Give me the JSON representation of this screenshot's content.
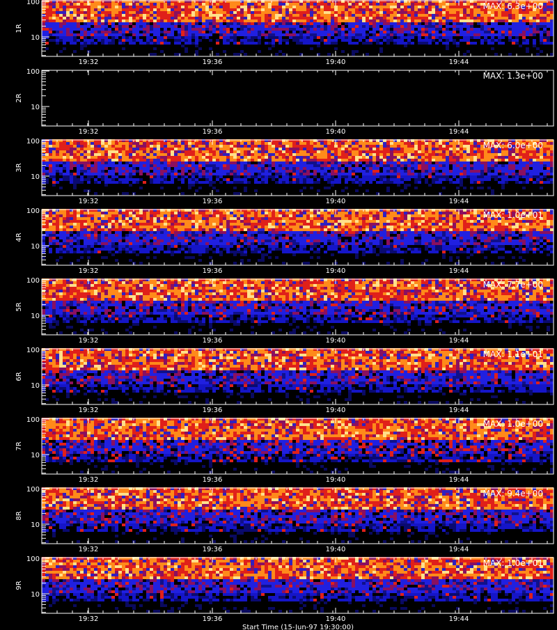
{
  "chart_data": {
    "type": "heatmap",
    "x_ticks": [
      "19:32",
      "19:36",
      "19:40",
      "19:44"
    ],
    "y_ticks": [
      "100",
      "10"
    ],
    "footer_label": "Start Time (15-Jun-97 19:30:00)",
    "panels": [
      {
        "ylabel": "1R",
        "max_label": "MAX: 6.3e+00",
        "empty": false,
        "red_speckle": 0.05
      },
      {
        "ylabel": "2R",
        "max_label": "MAX: 1.3e+00",
        "empty": true,
        "red_speckle": 0.0
      },
      {
        "ylabel": "3R",
        "max_label": "MAX: 6.0e+00",
        "empty": false,
        "red_speckle": 0.03
      },
      {
        "ylabel": "4R",
        "max_label": "MAX: 1.0e+01",
        "empty": false,
        "red_speckle": 0.03
      },
      {
        "ylabel": "5R",
        "max_label": "MAX: 7.7e+00",
        "empty": false,
        "red_speckle": 0.06
      },
      {
        "ylabel": "6R",
        "max_label": "MAX: 1.1e+01",
        "empty": false,
        "red_speckle": 0.04
      },
      {
        "ylabel": "7R",
        "max_label": "MAX: 1.0e+00",
        "empty": false,
        "red_speckle": 0.14
      },
      {
        "ylabel": "8R",
        "max_label": "MAX: 9.4e+00",
        "empty": false,
        "red_speckle": 0.05
      },
      {
        "ylabel": "9R",
        "max_label": "MAX: 1.0e+01",
        "empty": false,
        "red_speckle": 0.04
      }
    ]
  }
}
